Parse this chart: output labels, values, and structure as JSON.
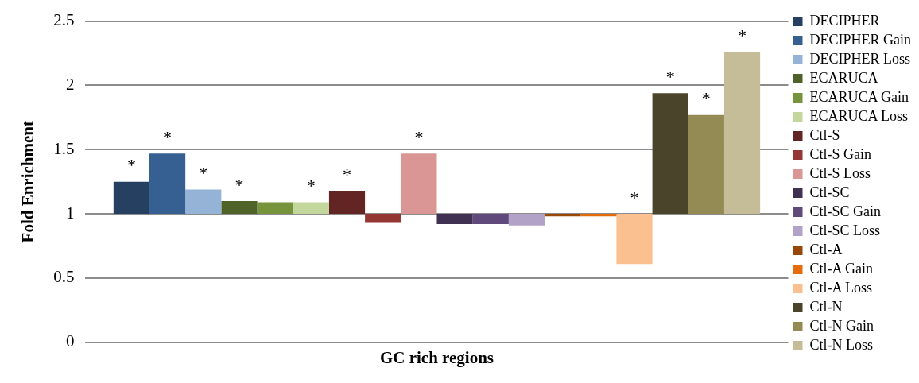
{
  "chart_data": {
    "type": "bar",
    "ylabel": "Fold Enrichment",
    "categories": [
      "GC rich regions"
    ],
    "ylim": [
      0,
      2.5
    ],
    "yticks": [
      0,
      0.5,
      1,
      1.5,
      2,
      2.5
    ],
    "grid": "y",
    "legend": "right",
    "series": [
      {
        "name": "DECIPHER",
        "color": "#254061",
        "base": [
          1
        ],
        "values": [
          0.25
        ],
        "value_labels": [
          "*"
        ]
      },
      {
        "name": "DECIPHER Gain",
        "color": "#366092",
        "base": [
          1
        ],
        "values": [
          0.47
        ],
        "value_labels": [
          "*"
        ]
      },
      {
        "name": "DECIPHER Loss",
        "color": "#95b3d7",
        "base": [
          1
        ],
        "values": [
          0.19
        ],
        "value_labels": [
          "*"
        ]
      },
      {
        "name": "ECARUCA",
        "color": "#4f6228",
        "base": [
          1
        ],
        "values": [
          0.1
        ],
        "value_labels": [
          "*"
        ]
      },
      {
        "name": "ECARUCA Gain",
        "color": "#77933c",
        "base": [
          1
        ],
        "values": [
          0.09
        ],
        "value_labels": [
          null
        ]
      },
      {
        "name": "ECARUCA Loss",
        "color": "#c3d69b",
        "base": [
          1
        ],
        "values": [
          0.09
        ],
        "value_labels": [
          "*"
        ]
      },
      {
        "name": "Ctl-S",
        "color": "#632523",
        "base": [
          1
        ],
        "values": [
          0.18
        ],
        "value_labels": [
          "*"
        ]
      },
      {
        "name": "Ctl-S Gain",
        "color": "#953735",
        "base": [
          1
        ],
        "values": [
          -0.07
        ],
        "value_labels": [
          null
        ]
      },
      {
        "name": "Ctl-S Loss",
        "color": "#d99694",
        "base": [
          1
        ],
        "values": [
          0.47
        ],
        "value_labels": [
          "*"
        ]
      },
      {
        "name": "Ctl-SC",
        "color": "#403152",
        "base": [
          1
        ],
        "values": [
          -0.08
        ],
        "value_labels": [
          null
        ]
      },
      {
        "name": "Ctl-SC Gain",
        "color": "#604a7b",
        "base": [
          1
        ],
        "values": [
          -0.08
        ],
        "value_labels": [
          null
        ]
      },
      {
        "name": "Ctl-SC Loss",
        "color": "#b3a2c7",
        "base": [
          1
        ],
        "values": [
          -0.09
        ],
        "value_labels": [
          null
        ]
      },
      {
        "name": "Ctl-A",
        "color": "#974806",
        "base": [
          1
        ],
        "values": [
          -0.02
        ],
        "value_labels": [
          null
        ]
      },
      {
        "name": "Ctl-A Gain",
        "color": "#e46c0a",
        "base": [
          1
        ],
        "values": [
          -0.02
        ],
        "value_labels": [
          null
        ]
      },
      {
        "name": "Ctl-A Loss",
        "color": "#fac090",
        "base": [
          1
        ],
        "values": [
          -0.39
        ],
        "value_labels": [
          "*"
        ]
      },
      {
        "name": "Ctl-N",
        "color": "#4a452a",
        "base": [
          1
        ],
        "values": [
          0.94
        ],
        "value_labels": [
          "*"
        ]
      },
      {
        "name": "Ctl-N Gain",
        "color": "#948a54",
        "base": [
          1
        ],
        "values": [
          0.77
        ],
        "value_labels": [
          "*"
        ]
      },
      {
        "name": "Ctl-N Loss",
        "color": "#c4bd97",
        "base": [
          1
        ],
        "values": [
          1.26
        ],
        "value_labels": [
          "*"
        ]
      }
    ]
  }
}
